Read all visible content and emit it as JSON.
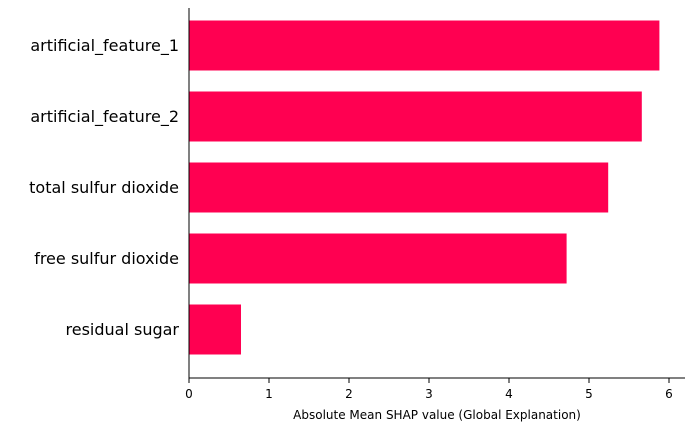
{
  "chart_data": {
    "type": "bar",
    "orientation": "horizontal",
    "categories": [
      "artificial_feature_1",
      "artificial_feature_2",
      "total sulfur dioxide",
      "free sulfur dioxide",
      "residual sugar"
    ],
    "values": [
      5.88,
      5.66,
      5.24,
      4.72,
      0.65
    ],
    "xlabel": "Absolute Mean SHAP value (Global Explanation)",
    "ylabel": "",
    "xlim": [
      0,
      6.2
    ],
    "xticks": [
      0,
      1,
      2,
      3,
      4,
      5,
      6
    ],
    "bar_color": "#ff0051",
    "grid": false,
    "legend": "none"
  }
}
